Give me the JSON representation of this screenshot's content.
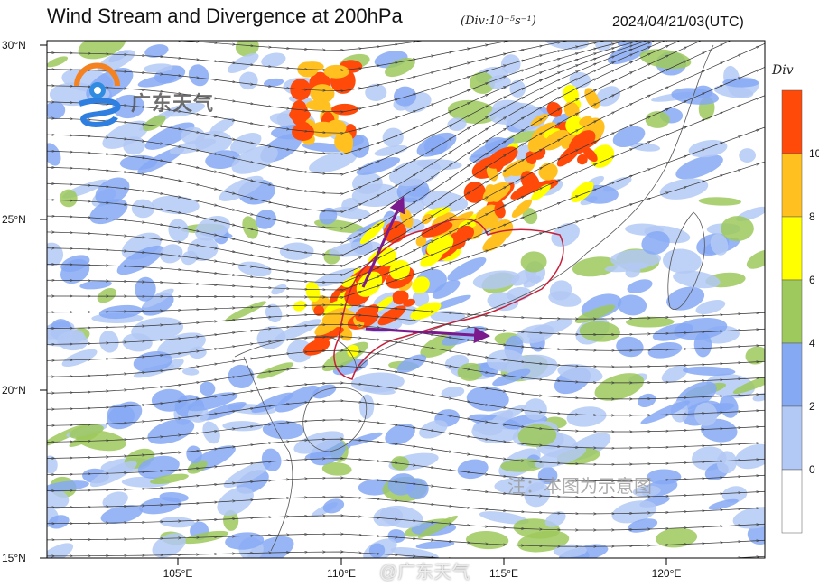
{
  "header": {
    "title": "Wind Stream and Divergence at 200hPa",
    "units": "(Div:10⁻⁵s⁻¹)",
    "datetime": "2024/04/21/03(UTC)"
  },
  "map": {
    "lat_ticks": [
      "30°N",
      "25°N",
      "20°N",
      "15°N"
    ],
    "lon_ticks": [
      "105°E",
      "110°E",
      "115°E",
      "120°E"
    ],
    "extent": {
      "lon": [
        101,
        123
      ],
      "lat": [
        15,
        30
      ]
    },
    "annotation_arrow_color": "#7b1a8c",
    "region_outline_color": "#c8203a"
  },
  "colorbar": {
    "title": "Div",
    "levels": [
      "10",
      "8",
      "6",
      "4",
      "2",
      "0"
    ],
    "colors": [
      "#ff4a0a",
      "#ffc020",
      "#ffff00",
      "#9ec95c",
      "#86a9f4",
      "#b3c9f5",
      "#ffffff"
    ]
  },
  "logo": {
    "text": "广东天气"
  },
  "note": "注：本图为示意图",
  "watermark": "@广东天气"
}
